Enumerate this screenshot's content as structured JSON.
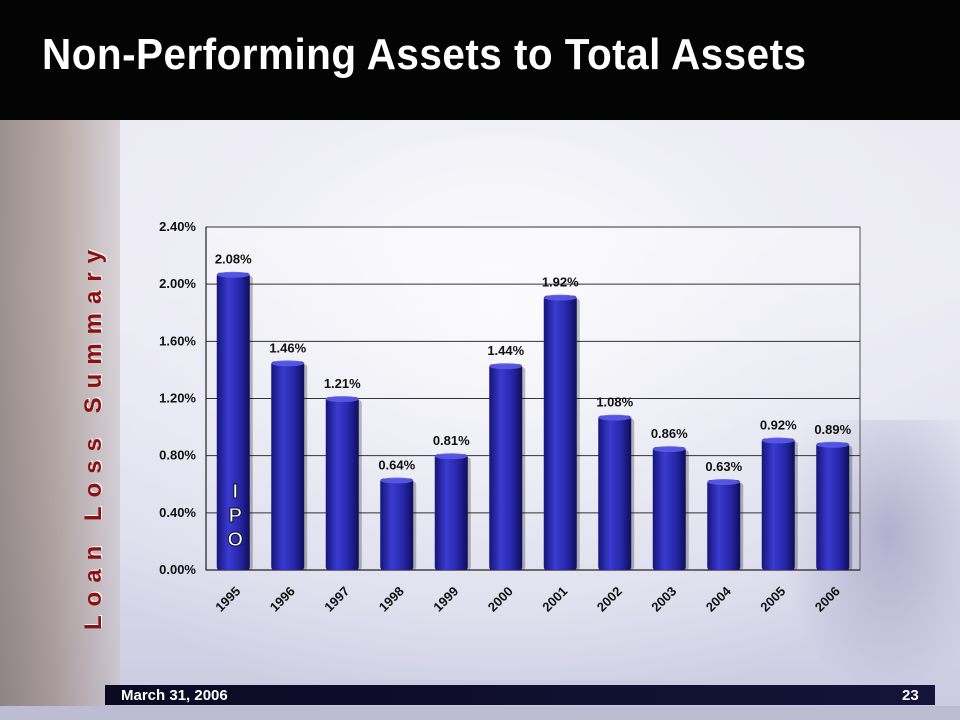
{
  "slide": {
    "title": "Non-Performing Assets to Total Assets",
    "side_label": "Loan Loss Summary",
    "footer_date": "March 31, 2006",
    "page_number": "23",
    "ipo_letters": [
      "I",
      "P",
      "O"
    ]
  },
  "chart_data": {
    "type": "bar",
    "title": "",
    "xlabel": "",
    "ylabel": "",
    "categories": [
      "1995",
      "1996",
      "1997",
      "1998",
      "1999",
      "2000",
      "2001",
      "2002",
      "2003",
      "2004",
      "2005",
      "2006"
    ],
    "values": [
      2.08,
      1.46,
      1.21,
      0.64,
      0.81,
      1.44,
      1.92,
      1.08,
      0.86,
      0.63,
      0.92,
      0.89
    ],
    "data_labels": [
      "2.08%",
      "1.46%",
      "1.21%",
      "0.64%",
      "0.81%",
      "1.44%",
      "1.92%",
      "1.08%",
      "0.86%",
      "0.63%",
      "0.92%",
      "0.89%"
    ],
    "ylim": [
      0,
      2.4
    ],
    "yticks": [
      0,
      0.4,
      0.8,
      1.2,
      1.6,
      2.0,
      2.4
    ],
    "ytick_labels": [
      "0.00%",
      "0.40%",
      "0.80%",
      "1.20%",
      "1.60%",
      "2.00%",
      "2.40%"
    ],
    "annotation": "IPO",
    "annotation_category": "1995",
    "grid": true,
    "legend": "none",
    "bar_color": "#2b2ba8"
  }
}
